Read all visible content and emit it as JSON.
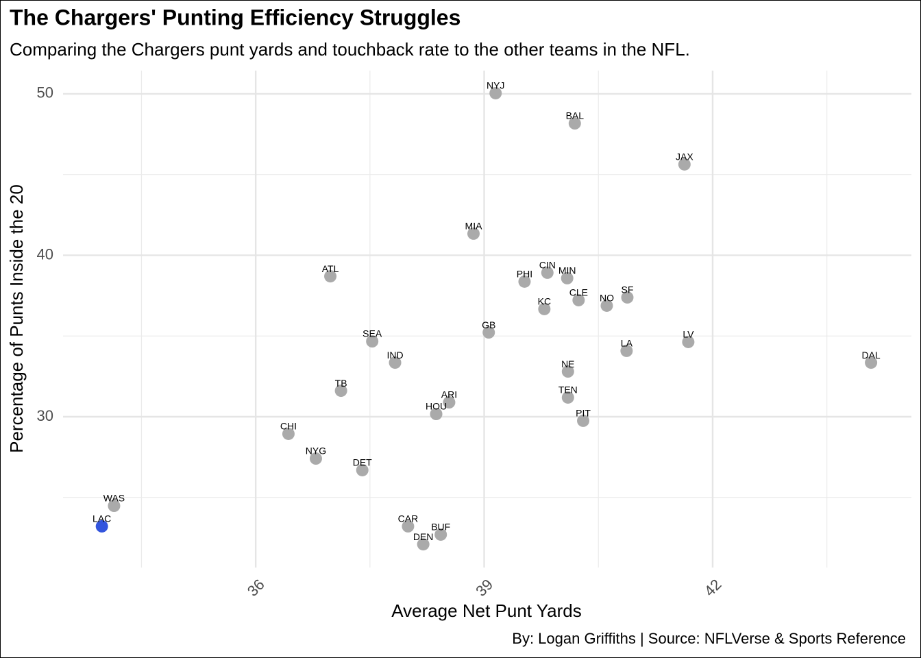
{
  "chart_data": {
    "type": "scatter",
    "title": "The Chargers' Punting Efficiency Struggles",
    "subtitle": "Comparing the Chargers punt yards and touchback rate to the other teams in the NFL.",
    "x_label": "Average Net Punt Yards",
    "y_label": "Percentage of Punts Inside the 20",
    "caption": "By: Logan Griffiths | Source: NFLVerse & Sports Reference",
    "labels": [
      "NYJ",
      "BAL",
      "JAX",
      "MIA",
      "ATL",
      "PHI",
      "CIN",
      "MIN",
      "CLE",
      "SF",
      "NO",
      "KC",
      "GB",
      "SEA",
      "LV",
      "LA",
      "DAL",
      "IND",
      "NE",
      "TB",
      "TEN",
      "ARI",
      "HOU",
      "PIT",
      "CHI",
      "NYG",
      "DET",
      "WAS",
      "LAC",
      "CAR",
      "BUF",
      "DEN"
    ],
    "x": [
      39.15,
      40.19,
      41.63,
      38.86,
      36.98,
      39.53,
      39.83,
      40.09,
      40.24,
      40.88,
      40.61,
      39.79,
      39.06,
      37.53,
      41.68,
      40.87,
      44.08,
      37.83,
      40.1,
      37.12,
      40.1,
      38.54,
      38.37,
      40.3,
      36.43,
      36.79,
      37.4,
      34.14,
      33.98,
      38.0,
      38.43,
      38.2
    ],
    "y": [
      50.04,
      48.17,
      45.63,
      41.34,
      38.7,
      38.37,
      38.92,
      38.58,
      37.22,
      37.39,
      36.88,
      36.67,
      35.22,
      34.67,
      34.63,
      34.08,
      33.35,
      33.35,
      32.8,
      31.61,
      31.19,
      30.89,
      30.17,
      29.75,
      28.94,
      27.41,
      26.69,
      24.48,
      23.21,
      23.21,
      22.7,
      22.1
    ],
    "color": "#aaaaaa",
    "highlight": "LAC",
    "highlight_color": "#3355dd",
    "xlim": [
      33.47,
      44.61
    ],
    "ylim": [
      20.66,
      51.44
    ],
    "xticks": [
      36,
      39,
      42
    ],
    "yticks": [
      30,
      40,
      50
    ],
    "x_minor_grid": [
      34.5,
      37.5,
      40.5,
      43.5
    ],
    "y_minor_grid": [
      25,
      35,
      45
    ],
    "grid": true
  }
}
